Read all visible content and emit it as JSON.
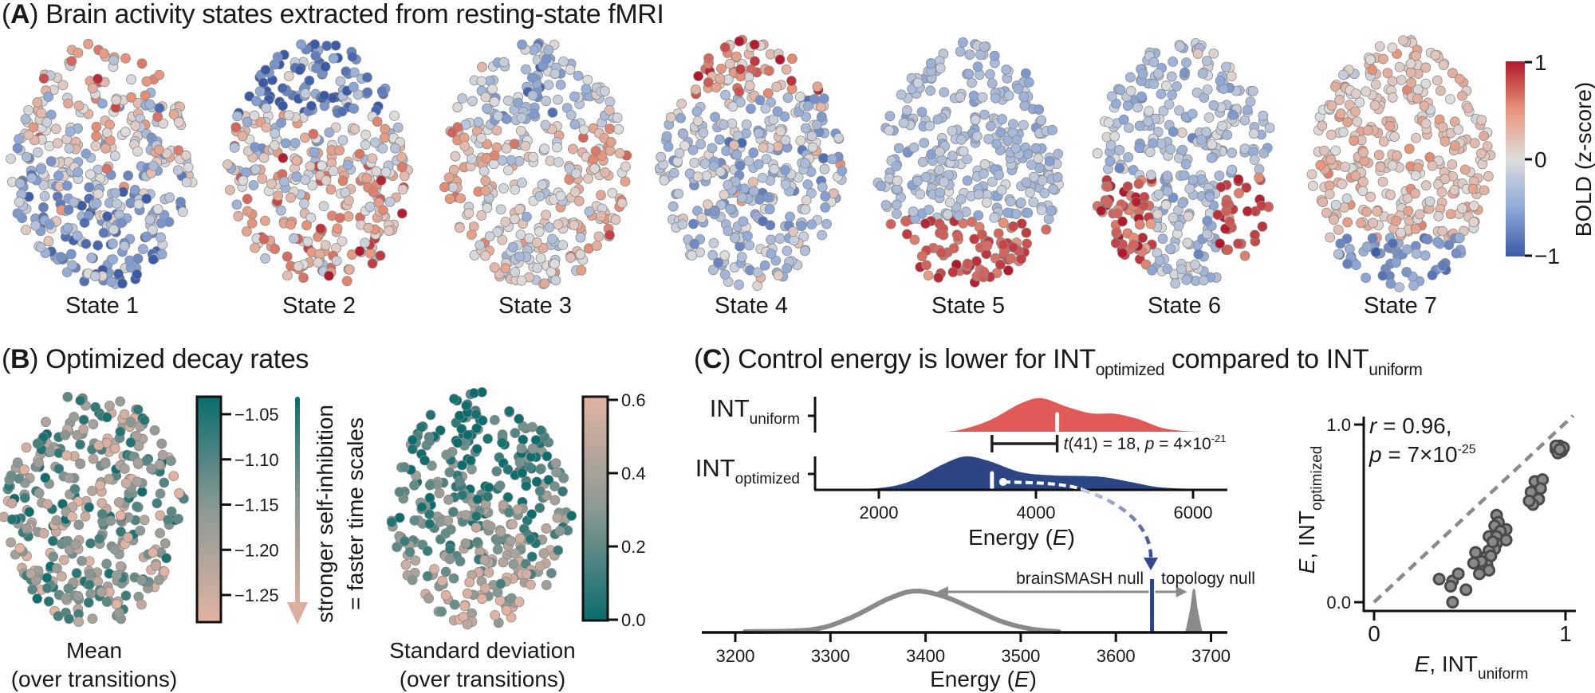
{
  "panel_a": {
    "label_open": "(",
    "letter": "A",
    "label_close": ")",
    "title": " Brain activity states extracted from resting-state fMRI",
    "states": [
      {
        "label": "State 1"
      },
      {
        "label": "State 2"
      },
      {
        "label": "State 3"
      },
      {
        "label": "State 4"
      },
      {
        "label": "State 5"
      },
      {
        "label": "State 6"
      },
      {
        "label": "State 7"
      }
    ],
    "colorbar": {
      "title": "BOLD (z-score)",
      "ticks": [
        {
          "value": 1,
          "label": "1"
        },
        {
          "value": 0,
          "label": "0"
        },
        {
          "value": -1,
          "label": "−1"
        }
      ],
      "range": [
        -1,
        1
      ],
      "colors": {
        "low": "#3b5aa8",
        "mid": "#dddddd",
        "high": "#b2182b"
      }
    }
  },
  "panel_b": {
    "label_open": "(",
    "letter": "B",
    "label_close": ")",
    "title": " Optimized decay rates",
    "mean": {
      "label": "Mean",
      "sublabel": "(over transitions)",
      "colorbar": {
        "ticks": [
          {
            "value": -1.05,
            "label": "−1.05"
          },
          {
            "value": -1.1,
            "label": "−1.10"
          },
          {
            "value": -1.15,
            "label": "−1.15"
          },
          {
            "value": -1.2,
            "label": "−1.20"
          },
          {
            "value": -1.25,
            "label": "−1.25"
          }
        ]
      }
    },
    "sd": {
      "label": "Standard deviation",
      "sublabel": "(over transitions)",
      "colorbar": {
        "ticks": [
          {
            "value": 0.6,
            "label": "0.6"
          },
          {
            "value": 0.4,
            "label": "0.4"
          },
          {
            "value": 0.2,
            "label": "0.2"
          },
          {
            "value": 0.0,
            "label": "0.0"
          }
        ]
      }
    },
    "arrow_text": [
      "stronger self-inhibition",
      "= faster time scales"
    ],
    "colors": {
      "teal": "#0b6d6d",
      "gray": "#8c9994",
      "pink": "#e2b3a3"
    }
  },
  "panel_c": {
    "label_open": "(",
    "letter": "C",
    "label_close": ")",
    "title_1": " Control energy is lower for INT",
    "title_sub_1": "optimized",
    "title_2": " compared to INT",
    "title_sub_2": "uniform"
  },
  "chart_data": [
    {
      "type": "area",
      "xlabel": "Energy (E)",
      "xlabel_main": "Energy (",
      "xlabel_italic": "E",
      "xlabel_close": ")",
      "xticks": [
        {
          "value": 2000,
          "label": "2000"
        },
        {
          "value": 4000,
          "label": "4000"
        },
        {
          "value": 6000,
          "label": "6000"
        }
      ],
      "series": [
        {
          "name": "INT",
          "name_sub": "uniform",
          "color": "#e05a57",
          "mean": 4270,
          "density": [
            [
              2700,
              0
            ],
            [
              3000,
              0.04
            ],
            [
              3400,
              0.33
            ],
            [
              3800,
              0.84
            ],
            [
              4070,
              1
            ],
            [
              4400,
              0.74
            ],
            [
              4700,
              0.55
            ],
            [
              5000,
              0.54
            ],
            [
              5300,
              0.38
            ],
            [
              5600,
              0.12
            ],
            [
              5900,
              0.02
            ],
            [
              6170,
              0
            ]
          ]
        },
        {
          "name": "INT",
          "name_sub": "optimized",
          "color": "#2b4585",
          "mean": 3440,
          "density": [
            [
              1420,
              0
            ],
            [
              2000,
              0.03
            ],
            [
              2400,
              0.24
            ],
            [
              2800,
              0.74
            ],
            [
              3100,
              1
            ],
            [
              3400,
              0.86
            ],
            [
              3800,
              0.52
            ],
            [
              4200,
              0.42
            ],
            [
              4800,
              0.38
            ],
            [
              5200,
              0.22
            ],
            [
              5600,
              0.05
            ],
            [
              6200,
              0
            ]
          ]
        }
      ],
      "annotation": {
        "t_italic": "t",
        "t_text": "(41) = 18, ",
        "p_italic": "p",
        "p_text": " = 4×10",
        "p_exp": "-21"
      }
    },
    {
      "type": "line",
      "xlabel_main": "Energy (",
      "xlabel_italic": "E",
      "xlabel_close": ")",
      "xticks": [
        {
          "value": 3200,
          "label": "3200"
        },
        {
          "value": 3300,
          "label": "3300"
        },
        {
          "value": 3400,
          "label": "3400"
        },
        {
          "value": 3500,
          "label": "3500"
        },
        {
          "value": 3600,
          "label": "3600"
        },
        {
          "value": 3700,
          "label": "3700"
        }
      ],
      "brainsmash_null": {
        "label": "brainSMASH null",
        "density": [
          [
            3210,
            0
          ],
          [
            3280,
            0.05
          ],
          [
            3320,
            0.33
          ],
          [
            3360,
            0.8
          ],
          [
            3389,
            1
          ],
          [
            3420,
            0.86
          ],
          [
            3450,
            0.56
          ],
          [
            3480,
            0.25
          ],
          [
            3510,
            0.07
          ],
          [
            3540,
            0
          ]
        ]
      },
      "topology_null": {
        "label": "topology null",
        "density": [
          [
            3674,
            0
          ],
          [
            3679,
            0.55
          ],
          [
            3682,
            1
          ],
          [
            3685,
            0.55
          ],
          [
            3690,
            0
          ]
        ]
      },
      "observed": 3638,
      "colors": {
        "null": "#8a8a8a",
        "observed": "#2b4585"
      }
    },
    {
      "type": "scatter",
      "xlabel_italic": "E",
      "xlabel_main": ", INT",
      "xlabel_sub": "uniform",
      "ylabel_italic": "E",
      "ylabel_main": ", INT",
      "ylabel_sub": "optimized",
      "xticks": [
        {
          "value": 0,
          "label": "0"
        },
        {
          "value": 1,
          "label": "1"
        }
      ],
      "yticks": [
        {
          "value": 0,
          "label": "0.0"
        },
        {
          "value": 1,
          "label": "1.0"
        }
      ],
      "identity_line": true,
      "r_italic": "r",
      "r_text": " = 0.96,",
      "p_italic": "p",
      "p_text": " = 7×10",
      "p_exp": "-25",
      "points": [
        [
          0.95,
          0.86
        ],
        [
          0.97,
          0.88
        ],
        [
          0.98,
          0.85
        ],
        [
          0.96,
          0.84
        ],
        [
          0.99,
          0.87
        ],
        [
          0.95,
          0.88
        ],
        [
          0.97,
          0.86
        ],
        [
          0.84,
          0.68
        ],
        [
          0.88,
          0.69
        ],
        [
          0.82,
          0.62
        ],
        [
          0.87,
          0.64
        ],
        [
          0.86,
          0.58
        ],
        [
          0.83,
          0.55
        ],
        [
          0.81,
          0.57
        ],
        [
          0.64,
          0.49
        ],
        [
          0.65,
          0.45
        ],
        [
          0.63,
          0.43
        ],
        [
          0.69,
          0.41
        ],
        [
          0.66,
          0.4
        ],
        [
          0.6,
          0.37
        ],
        [
          0.64,
          0.37
        ],
        [
          0.69,
          0.35
        ],
        [
          0.64,
          0.33
        ],
        [
          0.63,
          0.3
        ],
        [
          0.6,
          0.29
        ],
        [
          0.56,
          0.25
        ],
        [
          0.58,
          0.25
        ],
        [
          0.61,
          0.26
        ],
        [
          0.59,
          0.21
        ],
        [
          0.57,
          0.19
        ],
        [
          0.6,
          0.18
        ],
        [
          0.55,
          0.16
        ],
        [
          0.56,
          0.23
        ],
        [
          0.53,
          0.28
        ],
        [
          0.52,
          0.22
        ],
        [
          0.62,
          0.34
        ],
        [
          0.34,
          0.13
        ],
        [
          0.41,
          0.12
        ],
        [
          0.44,
          0.16
        ],
        [
          0.4,
          0.09
        ],
        [
          0.48,
          0.07
        ],
        [
          0.41,
          0.0
        ]
      ]
    }
  ]
}
